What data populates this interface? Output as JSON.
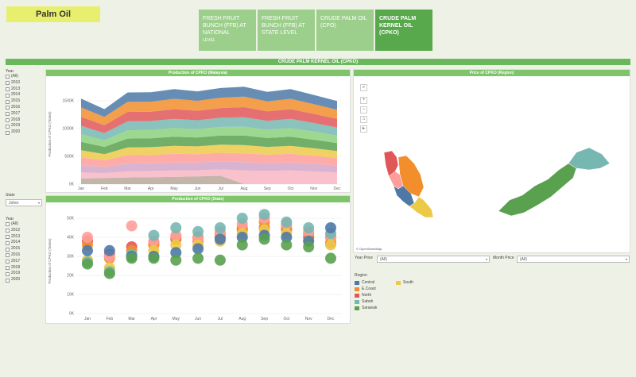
{
  "app": {
    "title": "Palm Oil"
  },
  "tabs": [
    {
      "label": "FRESH FRUIT BUNCH (FFB) AT NATIONAL",
      "sub": "LEVEL"
    },
    {
      "label": "FRESH FRUIT BUNCH (FFB) AT STATE LEVEL",
      "sub": ""
    },
    {
      "label": "CRUDE PALM OIL (CPO)",
      "sub": ""
    },
    {
      "label": "CRUDE PALM KERNEL OIL (CPKO)",
      "sub": ""
    }
  ],
  "banner": {
    "title": "CRUDE PALM KERNEL OIL (CPKO)"
  },
  "filters": {
    "year_title": "Year",
    "year_items": [
      "(All)",
      "2010",
      "2013",
      "2014",
      "2015",
      "2016",
      "2017",
      "2018",
      "2019",
      "2020"
    ],
    "state_title": "State",
    "state_value": "Johor",
    "year2_title": "Year",
    "year2_items": [
      "(All)",
      "2012",
      "2013",
      "2014",
      "2015",
      "2016",
      "2017",
      "2018",
      "2019",
      "2020"
    ]
  },
  "map": {
    "title": "Price of CPKO (Region)",
    "attribution": "© OpenStreetMap",
    "year_price_label": "Year Price",
    "year_price_value": "(All)",
    "month_price_label": "Month Price",
    "month_price_value": "(All)",
    "legend_title": "Region",
    "legend": [
      {
        "name": "Central",
        "color": "#4e79a7"
      },
      {
        "name": "E.Coast",
        "color": "#f28e2b"
      },
      {
        "name": "North",
        "color": "#e15759"
      },
      {
        "name": "Sabah",
        "color": "#76b7b2"
      },
      {
        "name": "Sarawak",
        "color": "#59a14f"
      },
      {
        "name": "South",
        "color": "#edc948"
      }
    ]
  },
  "chart_data": [
    {
      "type": "area",
      "title": "Production of CPKO (Malaysia)",
      "ylabel": "Production of CPKO (Tonne)",
      "categories": [
        "Jan",
        "Feb",
        "Mar",
        "Apr",
        "May",
        "Jun",
        "Jul",
        "Aug",
        "Sep",
        "Oct",
        "Nov",
        "Dec"
      ],
      "y_ticks": [
        "0K",
        "500K",
        "1000K",
        "1500K"
      ],
      "ylim": [
        0,
        1800000
      ],
      "stacked": true,
      "series": [
        {
          "color": "#b8a89a",
          "values": [
            100000,
            110000,
            120000,
            125000,
            130000,
            140000,
            150000,
            0,
            0,
            0,
            0,
            0
          ]
        },
        {
          "color": "#f7b6c2",
          "values": [
            110000,
            90000,
            110000,
            110000,
            115000,
            110000,
            115000,
            245000,
            240000,
            245000,
            230000,
            210000
          ]
        },
        {
          "color": "#d4a6c8",
          "values": [
            130000,
            110000,
            140000,
            140000,
            145000,
            140000,
            145000,
            150000,
            140000,
            145000,
            135000,
            125000
          ]
        },
        {
          "color": "#ff9d9a",
          "values": [
            140000,
            120000,
            150000,
            150000,
            155000,
            150000,
            155000,
            160000,
            150000,
            155000,
            145000,
            135000
          ]
        },
        {
          "color": "#edc948",
          "values": [
            130000,
            110000,
            140000,
            140000,
            145000,
            140000,
            145000,
            150000,
            140000,
            145000,
            135000,
            125000
          ]
        },
        {
          "color": "#59a14f",
          "values": [
            150000,
            130000,
            160000,
            160000,
            165000,
            160000,
            165000,
            170000,
            160000,
            165000,
            155000,
            145000
          ]
        },
        {
          "color": "#8cd17d",
          "values": [
            140000,
            120000,
            150000,
            150000,
            155000,
            150000,
            155000,
            160000,
            150000,
            155000,
            145000,
            135000
          ]
        },
        {
          "color": "#76b7b2",
          "values": [
            150000,
            130000,
            160000,
            160000,
            165000,
            160000,
            165000,
            170000,
            160000,
            165000,
            155000,
            145000
          ]
        },
        {
          "color": "#e15759",
          "values": [
            160000,
            140000,
            170000,
            170000,
            175000,
            170000,
            175000,
            180000,
            170000,
            175000,
            165000,
            155000
          ]
        },
        {
          "color": "#f28e2b",
          "values": [
            170000,
            150000,
            180000,
            180000,
            185000,
            180000,
            185000,
            190000,
            180000,
            185000,
            175000,
            165000
          ]
        },
        {
          "color": "#4e79a7",
          "values": [
            160000,
            140000,
            170000,
            170000,
            175000,
            170000,
            175000,
            180000,
            170000,
            175000,
            165000,
            155000
          ]
        }
      ]
    },
    {
      "type": "scatter",
      "title": "Production of CPKO (State)",
      "ylabel": "Production of CPKO (Tonne)",
      "categories": [
        "Jan",
        "Feb",
        "Mar",
        "Apr",
        "May",
        "Jun",
        "Jul",
        "Aug",
        "Sep",
        "Oct",
        "Nov",
        "Dec"
      ],
      "y_ticks": [
        "0K",
        "10K",
        "20K",
        "30K",
        "40K",
        "50K"
      ],
      "ylim": [
        0,
        55000
      ],
      "series": [
        {
          "color": "#e15759",
          "values": [
            38000,
            31000,
            35000,
            37000,
            39000,
            38000,
            40000,
            44000,
            45000,
            44000,
            40000,
            37000
          ]
        },
        {
          "color": "#f28e2b",
          "values": [
            36000,
            29000,
            33000,
            36000,
            40000,
            40000,
            42000,
            45000,
            48000,
            46000,
            42000,
            40000
          ]
        },
        {
          "color": "#ff9d9a",
          "values": [
            40000,
            30000,
            46000,
            38000,
            41000,
            39000,
            43000,
            47000,
            50000,
            47000,
            43000,
            41000
          ]
        },
        {
          "color": "#edc948",
          "values": [
            28000,
            24000,
            30000,
            33000,
            36000,
            36000,
            38000,
            42000,
            44000,
            42000,
            38000,
            36000
          ]
        },
        {
          "color": "#76b7b2",
          "values": [
            27000,
            22000,
            31000,
            41000,
            45000,
            43000,
            45000,
            50000,
            52000,
            48000,
            45000,
            42000
          ]
        },
        {
          "color": "#4e79a7",
          "values": [
            33000,
            33000,
            30000,
            30000,
            32000,
            34000,
            39000,
            40000,
            41000,
            40000,
            38000,
            45000
          ]
        },
        {
          "color": "#59a14f",
          "values": [
            26000,
            21000,
            29000,
            29000,
            28000,
            29000,
            28000,
            36000,
            39000,
            36000,
            35000,
            29000
          ]
        }
      ]
    }
  ]
}
